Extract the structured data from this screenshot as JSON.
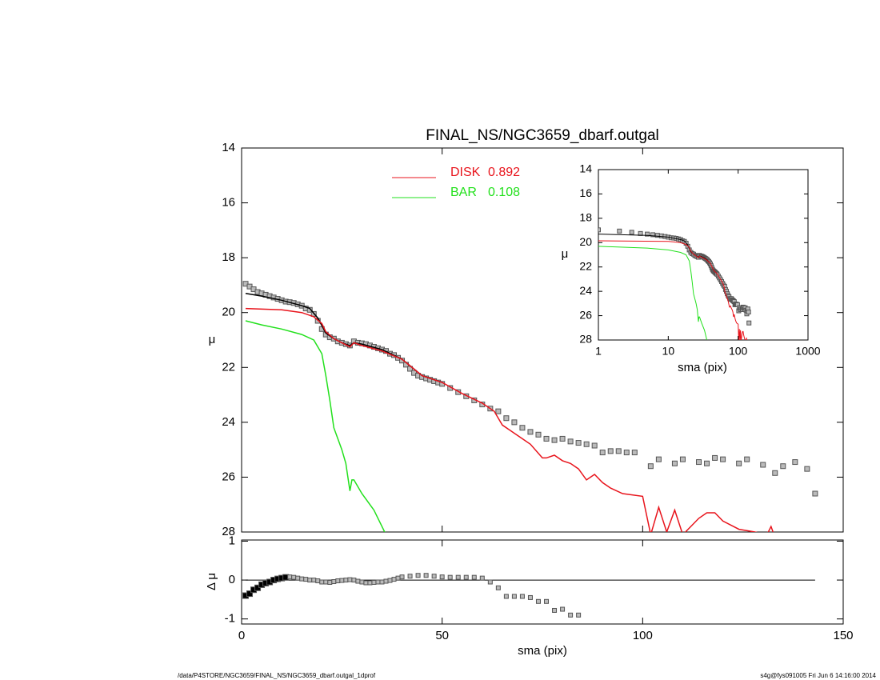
{
  "chart_data": [
    {
      "type": "line",
      "title": "FINAL_NS/NGC3659_dbarf.outgal",
      "y_label": "μ",
      "xlim": [
        0,
        150
      ],
      "xticks": [
        0,
        50,
        100,
        150
      ],
      "ylim": [
        28,
        14
      ],
      "yticks": [
        14,
        16,
        18,
        20,
        22,
        24,
        26,
        28
      ],
      "legend": "top-center",
      "series": [
        {
          "style": "points",
          "color": "#555555",
          "x": [
            1,
            2,
            3,
            4,
            5,
            6,
            7,
            8,
            9,
            10,
            11,
            12,
            13,
            14,
            15,
            16,
            17,
            18,
            19,
            20,
            21,
            22,
            23,
            24,
            25,
            26,
            27,
            28,
            29,
            30,
            31,
            32,
            33,
            34,
            35,
            36,
            37,
            38,
            39,
            40,
            41,
            42,
            43,
            44,
            45,
            46,
            47,
            48,
            49,
            50,
            52,
            54,
            56,
            58,
            60,
            62,
            64,
            66,
            68,
            70,
            72,
            74,
            76,
            78,
            80,
            82,
            84,
            86,
            88,
            90,
            92,
            94,
            96,
            98,
            102,
            104,
            108,
            110,
            114,
            116,
            118,
            120,
            124,
            126,
            130,
            133,
            135,
            138,
            141,
            143
          ],
          "values": [
            18.95,
            19.05,
            19.15,
            19.25,
            19.3,
            19.35,
            19.4,
            19.45,
            19.5,
            19.55,
            19.6,
            19.62,
            19.65,
            19.7,
            19.75,
            19.85,
            19.9,
            20.05,
            20.3,
            20.6,
            20.8,
            20.9,
            20.95,
            21.05,
            21.1,
            21.15,
            21.2,
            21.05,
            21.1,
            21.12,
            21.15,
            21.2,
            21.25,
            21.3,
            21.35,
            21.4,
            21.5,
            21.55,
            21.65,
            21.75,
            21.9,
            22.05,
            22.2,
            22.3,
            22.35,
            22.4,
            22.45,
            22.5,
            22.55,
            22.6,
            22.75,
            22.9,
            23.05,
            23.2,
            23.35,
            23.5,
            23.6,
            23.85,
            24.0,
            24.2,
            24.35,
            24.45,
            24.6,
            24.65,
            24.6,
            24.7,
            24.75,
            24.8,
            24.85,
            25.1,
            25.05,
            25.05,
            25.1,
            25.1,
            25.6,
            25.35,
            25.5,
            25.35,
            25.45,
            25.5,
            25.3,
            25.35,
            25.5,
            25.35,
            25.55,
            25.85,
            25.6,
            25.45,
            25.7,
            26.6
          ]
        },
        {
          "style": "line",
          "color": "#000000",
          "x": [
            1,
            5,
            10,
            15,
            17,
            19,
            21,
            23,
            25,
            27,
            28,
            30,
            35,
            40,
            45,
            50
          ],
          "values": [
            19.3,
            19.4,
            19.55,
            19.75,
            19.85,
            20.2,
            20.75,
            20.95,
            21.1,
            21.2,
            21.1,
            21.15,
            21.35,
            21.7,
            22.3,
            22.55
          ]
        },
        {
          "style": "line",
          "name": "DISK",
          "fraction": 0.892,
          "color": "#e8141c",
          "x": [
            1,
            10,
            15,
            18,
            20,
            21,
            23,
            25,
            27,
            28,
            30,
            35,
            40,
            45,
            50,
            55,
            60,
            63,
            65,
            67,
            70,
            72,
            75,
            76,
            78,
            80,
            82,
            84,
            86,
            88,
            90,
            92,
            95,
            100,
            102,
            104,
            106,
            108,
            110,
            114,
            116,
            118,
            120,
            124,
            128,
            131,
            132,
            133
          ],
          "values": [
            19.85,
            19.9,
            20.0,
            20.15,
            20.4,
            20.7,
            20.95,
            21.1,
            21.25,
            21.1,
            21.2,
            21.4,
            21.7,
            22.3,
            22.55,
            22.95,
            23.3,
            23.6,
            24.1,
            24.3,
            24.6,
            24.8,
            25.3,
            25.3,
            25.2,
            25.4,
            25.5,
            25.7,
            26.1,
            25.9,
            26.2,
            26.4,
            26.6,
            26.7,
            28.1,
            27.1,
            28.0,
            27.2,
            28.1,
            27.5,
            27.3,
            27.3,
            27.6,
            27.9,
            28.0,
            28.1,
            27.8,
            28.2
          ]
        },
        {
          "style": "line",
          "name": "BAR",
          "fraction": 0.108,
          "color": "#22e01c",
          "x": [
            1,
            5,
            10,
            15,
            18,
            20,
            21,
            22,
            23,
            25,
            26,
            27,
            27.5,
            28,
            30,
            33,
            36
          ],
          "values": [
            20.3,
            20.45,
            20.6,
            20.8,
            21.0,
            21.5,
            22.3,
            23.2,
            24.2,
            25.0,
            25.5,
            26.5,
            26.1,
            26.1,
            26.6,
            27.2,
            28.1
          ]
        }
      ]
    },
    {
      "type": "residual",
      "x_label": "sma (pix)",
      "y_label": "Δ μ",
      "xlim": [
        0,
        150
      ],
      "xticks": [
        0,
        50,
        100,
        150
      ],
      "ylim": [
        -1.13,
        1.03
      ],
      "yticks": [
        -1,
        0,
        1
      ],
      "zero_line": [
        1,
        143
      ],
      "x": [
        1,
        2,
        3,
        4,
        5,
        6,
        7,
        8,
        9,
        10,
        11,
        12,
        13,
        14,
        15,
        16,
        17,
        18,
        19,
        20,
        21,
        22,
        23,
        24,
        25,
        26,
        27,
        28,
        29,
        30,
        31,
        32,
        33,
        34,
        35,
        36,
        37,
        38,
        39,
        40,
        42,
        44,
        46,
        48,
        50,
        52,
        54,
        56,
        58,
        60,
        62,
        64,
        66,
        68,
        70,
        72,
        74,
        76,
        78,
        80,
        82,
        84
      ],
      "values": [
        -0.4,
        -0.35,
        -0.25,
        -0.2,
        -0.12,
        -0.08,
        -0.05,
        0,
        0.03,
        0.05,
        0.07,
        0.08,
        0.07,
        0.05,
        0.03,
        0.02,
        0,
        0,
        -0.02,
        -0.05,
        -0.05,
        -0.06,
        -0.04,
        -0.02,
        -0.01,
        0,
        0.01,
        0,
        -0.03,
        -0.05,
        -0.07,
        -0.07,
        -0.06,
        -0.05,
        -0.05,
        -0.03,
        -0.01,
        0.02,
        0.05,
        0.08,
        0.1,
        0.12,
        0.12,
        0.1,
        0.08,
        0.07,
        0.07,
        0.07,
        0.07,
        0.05,
        -0.05,
        -0.2,
        -0.42,
        -0.42,
        -0.42,
        -0.45,
        -0.55,
        -0.55,
        -0.78,
        -0.75,
        -0.9,
        -0.9
      ]
    },
    {
      "type": "inset",
      "x_label": "sma (pix)",
      "y_label": "μ",
      "log_x": true,
      "xlim": [
        1,
        1000
      ],
      "xticks": [
        1,
        10,
        100,
        1000
      ],
      "ylim": [
        28,
        14
      ],
      "yticks": [
        14,
        16,
        18,
        20,
        22,
        24,
        26,
        28
      ]
    }
  ],
  "footer": {
    "left": "/data/P4STORE/NGC3659/FINAL_NS/NGC3659_dbarf.outgal_1dprof",
    "right": "s4g@fys091005  Fri Jun  6 14:16:00 2014"
  }
}
